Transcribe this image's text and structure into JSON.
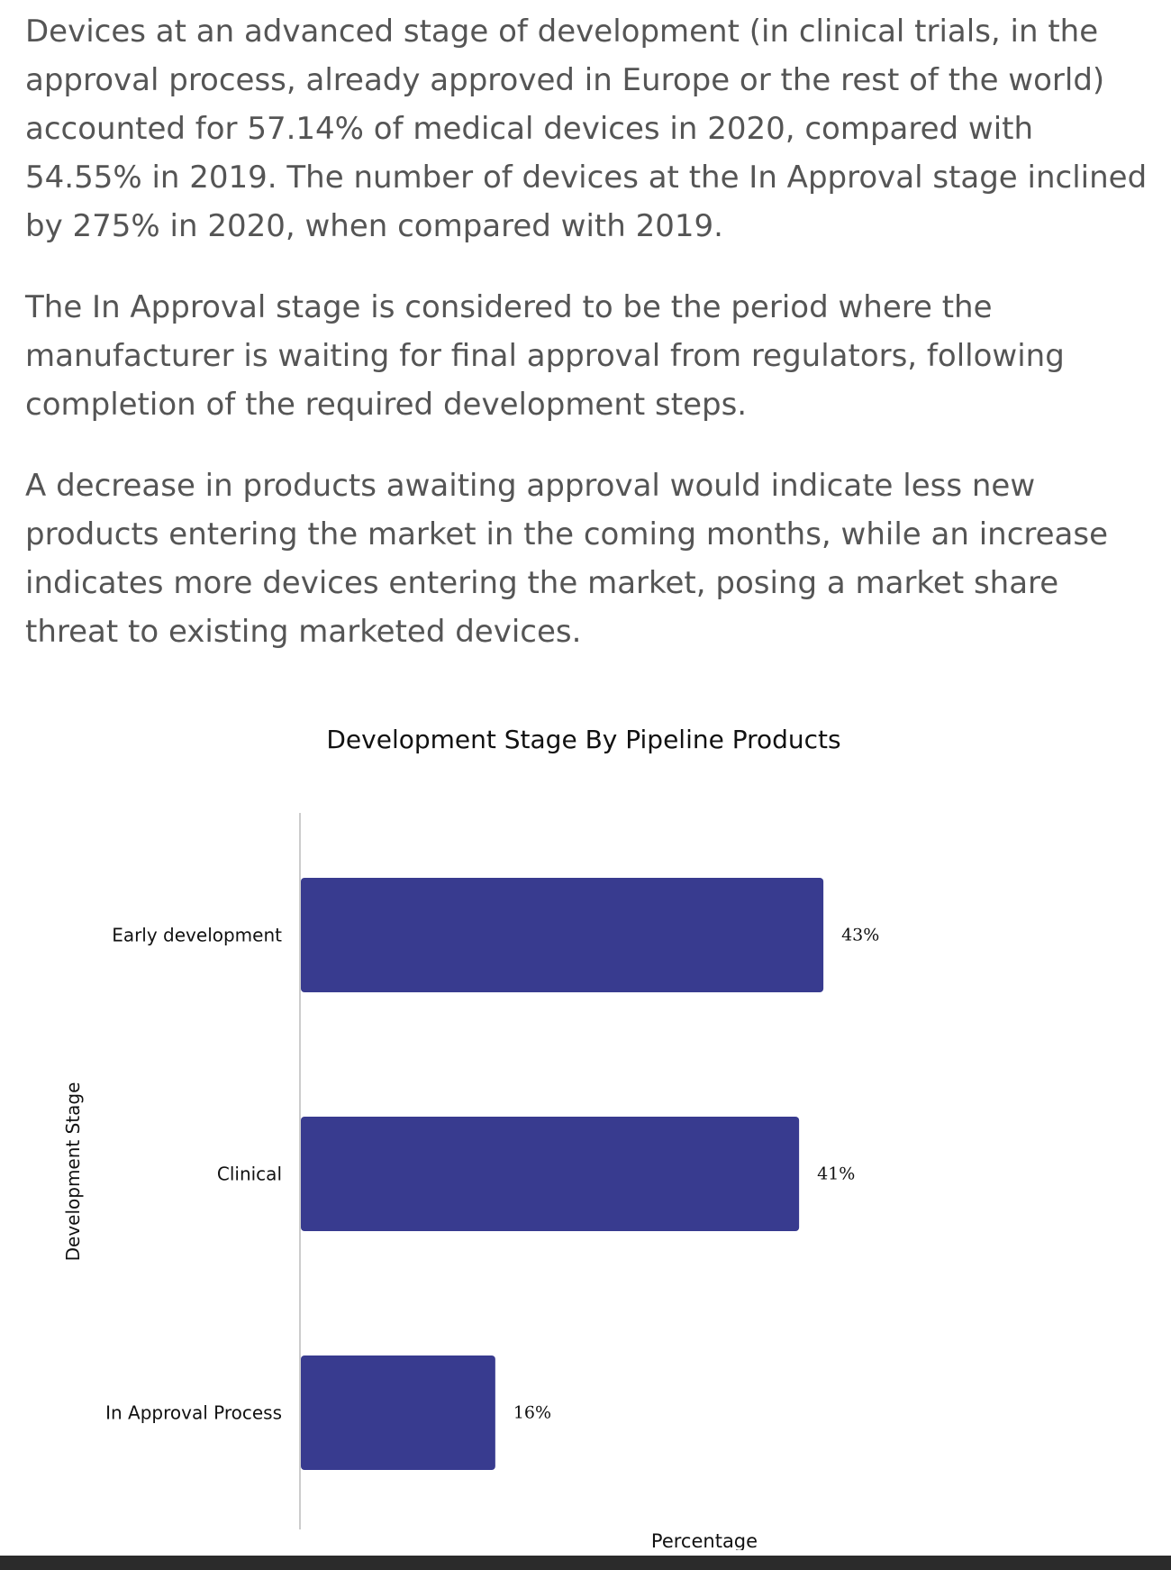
{
  "article": {
    "paragraphs": [
      "Devices at an advanced stage of development (in clinical trials, in the approval process, already approved in Europe or the rest of the world) accounted for 57.14% of medical devices in 2020, compared with 54.55% in 2019. The number of devices at the In Approval stage inclined by 275% in 2020, when compared with 2019.",
      "The In Approval stage is considered to be the period where the manufacturer is waiting for final approval from regulators, following completion of the required development steps.",
      "A decrease in products awaiting approval would indicate less new products entering the market in the coming months, while an increase indicates more devices entering the market, posing a market share threat to existing marketed devices."
    ]
  },
  "chart_data": {
    "type": "bar",
    "orientation": "horizontal",
    "title": "Development Stage By Pipeline Products",
    "xlabel": "Percentage",
    "ylabel": "Development Stage",
    "categories": [
      "Early development",
      "Clinical",
      "In Approval Process"
    ],
    "values": [
      43,
      41,
      16
    ],
    "data_labels": [
      "43%",
      "41%",
      "16%"
    ],
    "xlim": [
      0,
      55
    ],
    "grid": false,
    "legend": "none",
    "colors": {
      "bar": "#383b8f",
      "axis": "#cccccc",
      "text": "#111111"
    }
  }
}
